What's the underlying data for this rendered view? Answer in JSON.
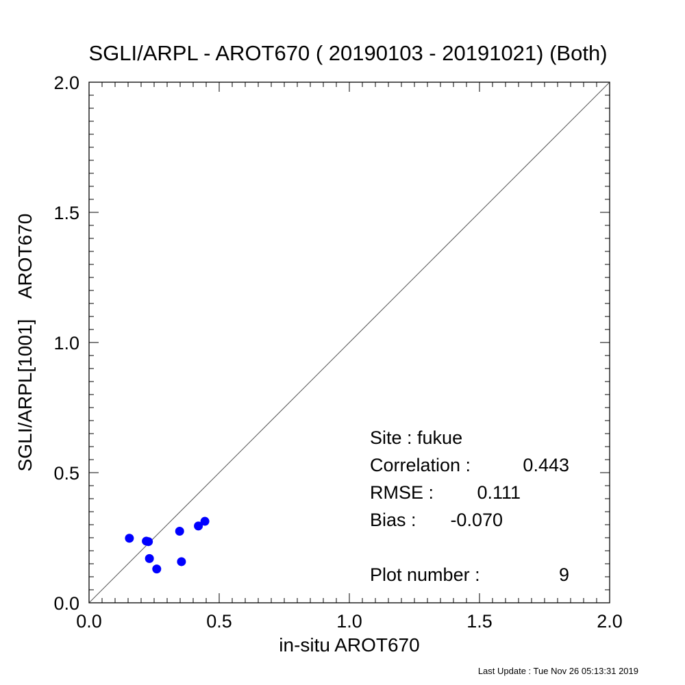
{
  "chart_data": {
    "type": "scatter",
    "title": "SGLI/ARPL - AROT670 ( 20190103 - 20191021) (Both)",
    "xlabel": "in-situ AROT670",
    "ylabel": "SGLI/ARPL[1001]    AROT670",
    "xlim": [
      0.0,
      2.0
    ],
    "ylim": [
      0.0,
      2.0
    ],
    "xticks": [
      "0.0",
      "0.5",
      "1.0",
      "1.5",
      "2.0"
    ],
    "yticks": [
      "0.0",
      "0.5",
      "1.0",
      "1.5",
      "2.0"
    ],
    "grid": false,
    "reference_line": "y = x",
    "marker_color": "#0000ff",
    "points": [
      {
        "x": 0.155,
        "y": 0.248
      },
      {
        "x": 0.22,
        "y": 0.237
      },
      {
        "x": 0.228,
        "y": 0.235
      },
      {
        "x": 0.232,
        "y": 0.17
      },
      {
        "x": 0.26,
        "y": 0.13
      },
      {
        "x": 0.348,
        "y": 0.275
      },
      {
        "x": 0.355,
        "y": 0.158
      },
      {
        "x": 0.42,
        "y": 0.295
      },
      {
        "x": 0.445,
        "y": 0.313
      }
    ]
  },
  "stats": {
    "site": "Site : fukue",
    "correlation_label": "Correlation :",
    "correlation_value": "0.443",
    "rmse_label": "RMSE :",
    "rmse_value": "0.111",
    "bias_label": "Bias :",
    "bias_value": "-0.070",
    "plot_number_label": "Plot number :",
    "plot_number_value": "9"
  },
  "footer": {
    "last_update": "Last Update : Tue Nov 26 05:13:31 2019"
  }
}
